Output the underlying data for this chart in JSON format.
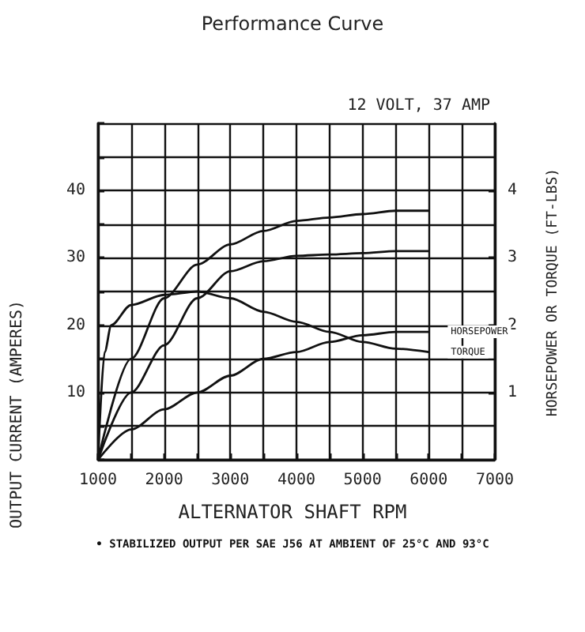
{
  "chart_data": {
    "type": "line",
    "title": "Performance Curve",
    "subtitle": "12 VOLT, 37 AMP",
    "xlabel": "ALTERNATOR SHAFT RPM",
    "ylabel": "OUTPUT CURRENT (AMPERES)",
    "y2label": "HORSEPOWER OR TORQUE (FT-LBS)",
    "annotations": [
      "• STABILIZED OUTPUT PER SAE J56 AT AMBIENT OF 25°C AND 93°C"
    ],
    "series": [
      {
        "color": "#111111",
        "x": [
          1000,
          1500,
          2000,
          2500,
          3000,
          3500,
          4000,
          4500,
          5000,
          5500,
          6000
        ],
        "values": [
          0,
          15,
          24,
          29,
          32,
          34,
          35.5,
          36,
          36.5,
          37,
          37
        ]
      },
      {
        "color": "#111111",
        "x": [
          1000,
          1500,
          2000,
          2500,
          3000,
          3500,
          4000,
          4500,
          5000,
          5500,
          6000
        ],
        "values": [
          0,
          10,
          17,
          24,
          28,
          29.5,
          30.3,
          30.5,
          30.7,
          31,
          31
        ]
      },
      {
        "name": "HORSEPOWER",
        "axis": "y2",
        "color": "#111111",
        "x": [
          1000,
          1500,
          2000,
          2500,
          3000,
          3500,
          4000,
          4500,
          5000,
          5500,
          6000
        ],
        "values": [
          0,
          0.45,
          0.75,
          1,
          1.25,
          1.5,
          1.6,
          1.75,
          1.85,
          1.9,
          1.9
        ]
      },
      {
        "name": "TORQUE",
        "axis": "y2",
        "color": "#111111",
        "x": [
          1000,
          1100,
          1200,
          1500,
          2000,
          2500,
          3000,
          3500,
          4000,
          4500,
          5000,
          5500,
          6000
        ],
        "values": [
          0,
          1.6,
          2,
          2.3,
          2.45,
          2.5,
          2.4,
          2.2,
          2.05,
          1.9,
          1.75,
          1.65,
          1.6
        ]
      }
    ],
    "xlim": [
      1000,
      7000
    ],
    "xticks": [
      1000,
      {
        "value": 1500,
        "label": null
      },
      2000,
      {
        "value": 2500,
        "label": null
      },
      3000,
      {
        "value": 3500,
        "label": null
      },
      4000,
      {
        "value": 4500,
        "label": null
      },
      5000,
      {
        "value": 5500,
        "label": null
      },
      6000,
      {
        "value": 6500,
        "label": null
      },
      7000
    ],
    "ylim": [
      0,
      50
    ],
    "yticks": [
      {
        "value": 0,
        "label": null
      },
      {
        "value": 5,
        "label": null
      },
      10,
      {
        "value": 15,
        "label": null
      },
      20,
      {
        "value": 25,
        "label": null
      },
      30,
      {
        "value": 35,
        "label": null
      },
      40,
      {
        "value": 45,
        "label": null
      },
      {
        "value": 50,
        "label": null
      }
    ],
    "y2lim": [
      0,
      5
    ],
    "y2ticks": [
      1,
      2,
      3,
      4
    ],
    "grid": true,
    "marker": "none",
    "line_style": "solid",
    "legend": false
  }
}
